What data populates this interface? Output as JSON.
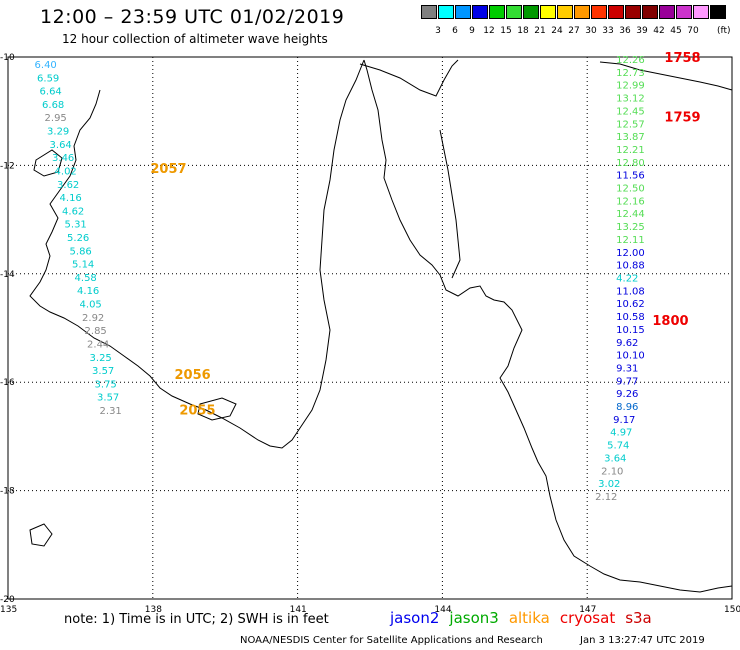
{
  "header": {
    "title": "12:00 – 23:59 UTC 01/02/2019",
    "subtitle": "12 hour collection of altimeter wave heights"
  },
  "legend": {
    "unit": "(ft)",
    "colors": [
      "#808080",
      "#00ffff",
      "#0096ff",
      "#0000e6",
      "#00cc00",
      "#33dd33",
      "#009900",
      "#ffff00",
      "#ffcc00",
      "#ff9900",
      "#ff3300",
      "#cc0000",
      "#990000",
      "#800000",
      "#990099",
      "#cc33cc",
      "#ff99ff",
      "#000000"
    ],
    "labels": [
      "3",
      "6",
      "9",
      "12",
      "15",
      "18",
      "21",
      "24",
      "27",
      "30",
      "33",
      "36",
      "39",
      "42",
      "45",
      "70"
    ]
  },
  "axes": {
    "lat_labels": [
      "-10",
      "-12",
      "-14",
      "-16",
      "-18",
      "-20"
    ],
    "lon_labels": [
      "135",
      "138",
      "141",
      "144",
      "147",
      "150"
    ]
  },
  "tracks": [
    {
      "id": "west",
      "lon": 135.55,
      "items": [
        {
          "v": "6.40",
          "c": "#33b3ff"
        },
        {
          "v": "6.59",
          "c": "#00cccc"
        },
        {
          "v": "6.64",
          "c": "#00cccc"
        },
        {
          "v": "6.68",
          "c": "#00cccc"
        },
        {
          "v": "2.95",
          "c": "#888888"
        },
        {
          "v": "3.29",
          "c": "#00cccc"
        },
        {
          "v": "3.64",
          "c": "#00cccc"
        },
        {
          "v": "3.46",
          "c": "#00cccc"
        },
        {
          "v": "4.02",
          "c": "#00cccc"
        },
        {
          "v": "3.62",
          "c": "#00cccc"
        },
        {
          "v": "4.16",
          "c": "#00cccc"
        },
        {
          "v": "4.62",
          "c": "#00cccc"
        },
        {
          "v": "5.31",
          "c": "#00cccc"
        },
        {
          "v": "5.26",
          "c": "#00cccc"
        },
        {
          "v": "5.86",
          "c": "#00cccc"
        },
        {
          "v": "5.14",
          "c": "#00cccc"
        },
        {
          "v": "4.58",
          "c": "#00cccc"
        },
        {
          "v": "4.16",
          "c": "#00cccc"
        },
        {
          "v": "4.05",
          "c": "#00cccc"
        },
        {
          "v": "2.92",
          "c": "#888888"
        },
        {
          "v": "2.85",
          "c": "#888888"
        },
        {
          "v": "2.44",
          "c": "#888888"
        },
        {
          "v": "3.25",
          "c": "#00cccc"
        },
        {
          "v": "3.57",
          "c": "#00cccc"
        },
        {
          "v": "3.75",
          "c": "#00cccc"
        },
        {
          "v": "3.57",
          "c": "#00cccc"
        },
        {
          "v": "2.31",
          "c": "#888888"
        }
      ]
    },
    {
      "id": "east",
      "lon": 147.6,
      "items": [
        {
          "v": "12.26",
          "c": "#55dd55"
        },
        {
          "v": "12.73",
          "c": "#55dd55"
        },
        {
          "v": "12.99",
          "c": "#55dd55"
        },
        {
          "v": "13.12",
          "c": "#55dd55"
        },
        {
          "v": "12.45",
          "c": "#55dd55"
        },
        {
          "v": "12.57",
          "c": "#55dd55"
        },
        {
          "v": "13.87",
          "c": "#55dd55"
        },
        {
          "v": "12.21",
          "c": "#55dd55"
        },
        {
          "v": "12.80",
          "c": "#55dd55"
        },
        {
          "v": "11.56",
          "c": "#0000dd"
        },
        {
          "v": "12.50",
          "c": "#55dd55"
        },
        {
          "v": "12.16",
          "c": "#55dd55"
        },
        {
          "v": "12.44",
          "c": "#55dd55"
        },
        {
          "v": "13.25",
          "c": "#55dd55"
        },
        {
          "v": "12.11",
          "c": "#55dd55"
        },
        {
          "v": "12.00",
          "c": "#0000dd"
        },
        {
          "v": "10.88",
          "c": "#0000dd"
        },
        {
          "v": "4.22",
          "c": "#00cccc"
        },
        {
          "v": "11.08",
          "c": "#0000dd"
        },
        {
          "v": "10.62",
          "c": "#0000dd"
        },
        {
          "v": "10.58",
          "c": "#0000dd"
        },
        {
          "v": "10.15",
          "c": "#0000dd"
        },
        {
          "v": "9.62",
          "c": "#0000dd"
        },
        {
          "v": "10.10",
          "c": "#0000dd"
        },
        {
          "v": "9.31",
          "c": "#0000dd"
        },
        {
          "v": "9.77",
          "c": "#0000dd"
        },
        {
          "v": "9.26",
          "c": "#0000dd"
        },
        {
          "v": "8.96",
          "c": "#0066cc"
        },
        {
          "v": "9.17",
          "c": "#0000dd"
        },
        {
          "v": "4.97",
          "c": "#00cccc"
        },
        {
          "v": "5.74",
          "c": "#00cccc"
        },
        {
          "v": "3.64",
          "c": "#00cccc"
        },
        {
          "v": "2.10",
          "c": "#888888"
        },
        {
          "v": "3.02",
          "c": "#00cccc"
        },
        {
          "v": "2.12",
          "c": "#888888"
        }
      ]
    }
  ],
  "time_labels": [
    {
      "t": "2057",
      "lat": -12.05,
      "lon": 137.95,
      "c": "#ee9900"
    },
    {
      "t": "2056",
      "lat": -15.85,
      "lon": 138.45,
      "c": "#ee9900"
    },
    {
      "t": "2055",
      "lat": -16.5,
      "lon": 138.55,
      "c": "#ee9900"
    },
    {
      "t": "1758",
      "lat": -10.0,
      "lon": 148.6,
      "c": "#ee0000"
    },
    {
      "t": "1759",
      "lat": -11.1,
      "lon": 148.6,
      "c": "#ee0000"
    },
    {
      "t": "1800",
      "lat": -14.85,
      "lon": 148.35,
      "c": "#ee0000"
    }
  ],
  "footer": {
    "note": "note:  1) Time is in UTC;  2) SWH is in feet",
    "satellites": [
      {
        "name": "jason2",
        "color": "#0000ee"
      },
      {
        "name": "jason3",
        "color": "#00aa00"
      },
      {
        "name": "altika",
        "color": "#ff9900"
      },
      {
        "name": "cryosat",
        "color": "#ee0000"
      },
      {
        "name": "s3a",
        "color": "#cc0000"
      }
    ],
    "credit": "NOAA/NESDIS Center for Satellite Applications and Research",
    "timestamp": "Jan  3 13:27:47 UTC 2019"
  }
}
